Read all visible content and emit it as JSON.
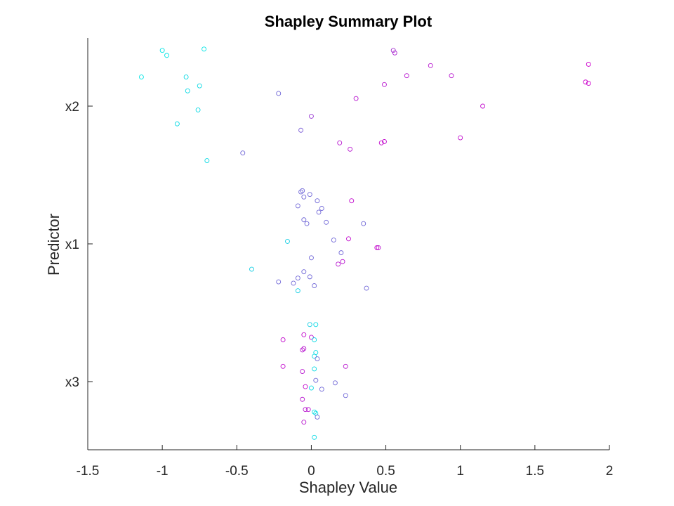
{
  "chart_data": {
    "type": "scatter",
    "title": "Shapley Summary Plot",
    "xlabel": "Shapley Value",
    "ylabel": "Predictor",
    "xlim": [
      -1.5,
      2
    ],
    "xticks": [
      "-1.5",
      "-1",
      "-0.5",
      "0",
      "0.5",
      "1",
      "1.5",
      "2"
    ],
    "categories": [
      "x2",
      "x1",
      "x3"
    ],
    "grid": false,
    "colormap": {
      "low": "#00e5e5",
      "high": "#cc00cc"
    },
    "points": [
      {
        "predictor": "x2",
        "x": -1.0,
        "offset": 0.44,
        "c": 0.0
      },
      {
        "predictor": "x2",
        "x": -0.97,
        "offset": 0.4,
        "c": 0.0
      },
      {
        "predictor": "x2",
        "x": -0.72,
        "offset": 0.45,
        "c": 0.0
      },
      {
        "predictor": "x2",
        "x": -1.14,
        "offset": 0.23,
        "c": 0.0
      },
      {
        "predictor": "x2",
        "x": -0.84,
        "offset": 0.23,
        "c": 0.05
      },
      {
        "predictor": "x2",
        "x": -0.75,
        "offset": 0.16,
        "c": 0.05
      },
      {
        "predictor": "x2",
        "x": -0.83,
        "offset": 0.12,
        "c": 0.05
      },
      {
        "predictor": "x2",
        "x": -0.76,
        "offset": -0.03,
        "c": 0.05
      },
      {
        "predictor": "x2",
        "x": -0.9,
        "offset": -0.14,
        "c": 0.05
      },
      {
        "predictor": "x2",
        "x": -0.7,
        "offset": -0.43,
        "c": 0.05
      },
      {
        "predictor": "x2",
        "x": -0.46,
        "offset": -0.37,
        "c": 0.55
      },
      {
        "predictor": "x2",
        "x": -0.22,
        "offset": 0.1,
        "c": 0.55
      },
      {
        "predictor": "x2",
        "x": -0.07,
        "offset": -0.19,
        "c": 0.6
      },
      {
        "predictor": "x2",
        "x": 0.0,
        "offset": -0.08,
        "c": 0.75
      },
      {
        "predictor": "x2",
        "x": 0.55,
        "offset": 0.44,
        "c": 0.8
      },
      {
        "predictor": "x2",
        "x": 0.56,
        "offset": 0.42,
        "c": 0.85
      },
      {
        "predictor": "x2",
        "x": 0.8,
        "offset": 0.32,
        "c": 0.9
      },
      {
        "predictor": "x2",
        "x": 0.94,
        "offset": 0.24,
        "c": 0.9
      },
      {
        "predictor": "x2",
        "x": 0.64,
        "offset": 0.24,
        "c": 0.9
      },
      {
        "predictor": "x2",
        "x": 0.49,
        "offset": 0.17,
        "c": 0.9
      },
      {
        "predictor": "x2",
        "x": 0.3,
        "offset": 0.06,
        "c": 0.9
      },
      {
        "predictor": "x2",
        "x": 1.15,
        "offset": 0.0,
        "c": 0.95
      },
      {
        "predictor": "x2",
        "x": 1.0,
        "offset": -0.25,
        "c": 0.95
      },
      {
        "predictor": "x2",
        "x": 0.49,
        "offset": -0.28,
        "c": 0.95
      },
      {
        "predictor": "x2",
        "x": 0.47,
        "offset": -0.29,
        "c": 0.95
      },
      {
        "predictor": "x2",
        "x": 0.19,
        "offset": -0.29,
        "c": 0.9
      },
      {
        "predictor": "x2",
        "x": 0.26,
        "offset": -0.34,
        "c": 0.9
      },
      {
        "predictor": "x2",
        "x": 1.86,
        "offset": 0.33,
        "c": 1.0
      },
      {
        "predictor": "x2",
        "x": 1.84,
        "offset": 0.19,
        "c": 1.0
      },
      {
        "predictor": "x2",
        "x": 1.86,
        "offset": 0.18,
        "c": 1.0
      },
      {
        "predictor": "x1",
        "x": -0.07,
        "offset": 0.41,
        "c": 0.55
      },
      {
        "predictor": "x1",
        "x": -0.06,
        "offset": 0.42,
        "c": 0.55
      },
      {
        "predictor": "x1",
        "x": -0.01,
        "offset": 0.39,
        "c": 0.55
      },
      {
        "predictor": "x1",
        "x": -0.05,
        "offset": 0.37,
        "c": 0.55
      },
      {
        "predictor": "x1",
        "x": 0.04,
        "offset": 0.34,
        "c": 0.55
      },
      {
        "predictor": "x1",
        "x": -0.09,
        "offset": 0.3,
        "c": 0.55
      },
      {
        "predictor": "x1",
        "x": 0.07,
        "offset": 0.28,
        "c": 0.55
      },
      {
        "predictor": "x1",
        "x": 0.05,
        "offset": 0.25,
        "c": 0.55
      },
      {
        "predictor": "x1",
        "x": -0.05,
        "offset": 0.19,
        "c": 0.55
      },
      {
        "predictor": "x1",
        "x": 0.1,
        "offset": 0.17,
        "c": 0.55
      },
      {
        "predictor": "x1",
        "x": -0.03,
        "offset": 0.16,
        "c": 0.55
      },
      {
        "predictor": "x1",
        "x": 0.35,
        "offset": 0.16,
        "c": 0.55
      },
      {
        "predictor": "x1",
        "x": 0.27,
        "offset": 0.34,
        "c": 0.95
      },
      {
        "predictor": "x1",
        "x": 0.25,
        "offset": 0.04,
        "c": 0.95
      },
      {
        "predictor": "x1",
        "x": 0.15,
        "offset": 0.03,
        "c": 0.55
      },
      {
        "predictor": "x1",
        "x": -0.16,
        "offset": 0.02,
        "c": 0.1
      },
      {
        "predictor": "x1",
        "x": 0.44,
        "offset": -0.03,
        "c": 1.0
      },
      {
        "predictor": "x1",
        "x": 0.45,
        "offset": -0.03,
        "c": 0.9
      },
      {
        "predictor": "x1",
        "x": 0.2,
        "offset": -0.07,
        "c": 0.55
      },
      {
        "predictor": "x1",
        "x": 0.0,
        "offset": -0.11,
        "c": 0.55
      },
      {
        "predictor": "x1",
        "x": 0.21,
        "offset": -0.14,
        "c": 0.9
      },
      {
        "predictor": "x1",
        "x": 0.18,
        "offset": -0.16,
        "c": 0.9
      },
      {
        "predictor": "x1",
        "x": -0.4,
        "offset": -0.2,
        "c": 0.1
      },
      {
        "predictor": "x1",
        "x": -0.05,
        "offset": -0.22,
        "c": 0.55
      },
      {
        "predictor": "x1",
        "x": -0.09,
        "offset": -0.27,
        "c": 0.55
      },
      {
        "predictor": "x1",
        "x": -0.01,
        "offset": -0.26,
        "c": 0.55
      },
      {
        "predictor": "x1",
        "x": -0.22,
        "offset": -0.3,
        "c": 0.55
      },
      {
        "predictor": "x1",
        "x": -0.12,
        "offset": -0.31,
        "c": 0.55
      },
      {
        "predictor": "x1",
        "x": 0.02,
        "offset": -0.33,
        "c": 0.55
      },
      {
        "predictor": "x1",
        "x": 0.37,
        "offset": -0.35,
        "c": 0.55
      },
      {
        "predictor": "x1",
        "x": -0.09,
        "offset": -0.37,
        "c": 0.1
      },
      {
        "predictor": "x3",
        "x": -0.01,
        "offset": 0.45,
        "c": 0.1
      },
      {
        "predictor": "x3",
        "x": 0.03,
        "offset": 0.45,
        "c": 0.05
      },
      {
        "predictor": "x3",
        "x": -0.05,
        "offset": 0.37,
        "c": 0.95
      },
      {
        "predictor": "x3",
        "x": 0.0,
        "offset": 0.35,
        "c": 0.95
      },
      {
        "predictor": "x3",
        "x": 0.02,
        "offset": 0.33,
        "c": 0.05
      },
      {
        "predictor": "x3",
        "x": -0.19,
        "offset": 0.33,
        "c": 0.95
      },
      {
        "predictor": "x3",
        "x": -0.06,
        "offset": 0.25,
        "c": 0.9
      },
      {
        "predictor": "x3",
        "x": -0.05,
        "offset": 0.26,
        "c": 0.9
      },
      {
        "predictor": "x3",
        "x": 0.03,
        "offset": 0.23,
        "c": 0.05
      },
      {
        "predictor": "x3",
        "x": 0.02,
        "offset": 0.2,
        "c": 0.05
      },
      {
        "predictor": "x3",
        "x": 0.04,
        "offset": 0.18,
        "c": 0.55
      },
      {
        "predictor": "x3",
        "x": -0.19,
        "offset": 0.12,
        "c": 0.95
      },
      {
        "predictor": "x3",
        "x": 0.23,
        "offset": 0.12,
        "c": 0.9
      },
      {
        "predictor": "x3",
        "x": 0.02,
        "offset": 0.1,
        "c": 0.05
      },
      {
        "predictor": "x3",
        "x": -0.06,
        "offset": 0.08,
        "c": 0.9
      },
      {
        "predictor": "x3",
        "x": 0.03,
        "offset": 0.01,
        "c": 0.55
      },
      {
        "predictor": "x3",
        "x": 0.16,
        "offset": -0.01,
        "c": 0.55
      },
      {
        "predictor": "x3",
        "x": -0.04,
        "offset": -0.04,
        "c": 0.95
      },
      {
        "predictor": "x3",
        "x": 0.0,
        "offset": -0.05,
        "c": 0.05
      },
      {
        "predictor": "x3",
        "x": 0.07,
        "offset": -0.06,
        "c": 0.55
      },
      {
        "predictor": "x3",
        "x": 0.23,
        "offset": -0.11,
        "c": 0.55
      },
      {
        "predictor": "x3",
        "x": -0.06,
        "offset": -0.14,
        "c": 0.9
      },
      {
        "predictor": "x3",
        "x": -0.02,
        "offset": -0.22,
        "c": 0.9
      },
      {
        "predictor": "x3",
        "x": -0.04,
        "offset": -0.22,
        "c": 0.9
      },
      {
        "predictor": "x3",
        "x": 0.02,
        "offset": -0.24,
        "c": 0.05
      },
      {
        "predictor": "x3",
        "x": 0.03,
        "offset": -0.25,
        "c": 0.05
      },
      {
        "predictor": "x3",
        "x": 0.04,
        "offset": -0.28,
        "c": 0.55
      },
      {
        "predictor": "x3",
        "x": -0.05,
        "offset": -0.32,
        "c": 0.9
      },
      {
        "predictor": "x3",
        "x": 0.02,
        "offset": -0.44,
        "c": 0.05
      }
    ]
  }
}
